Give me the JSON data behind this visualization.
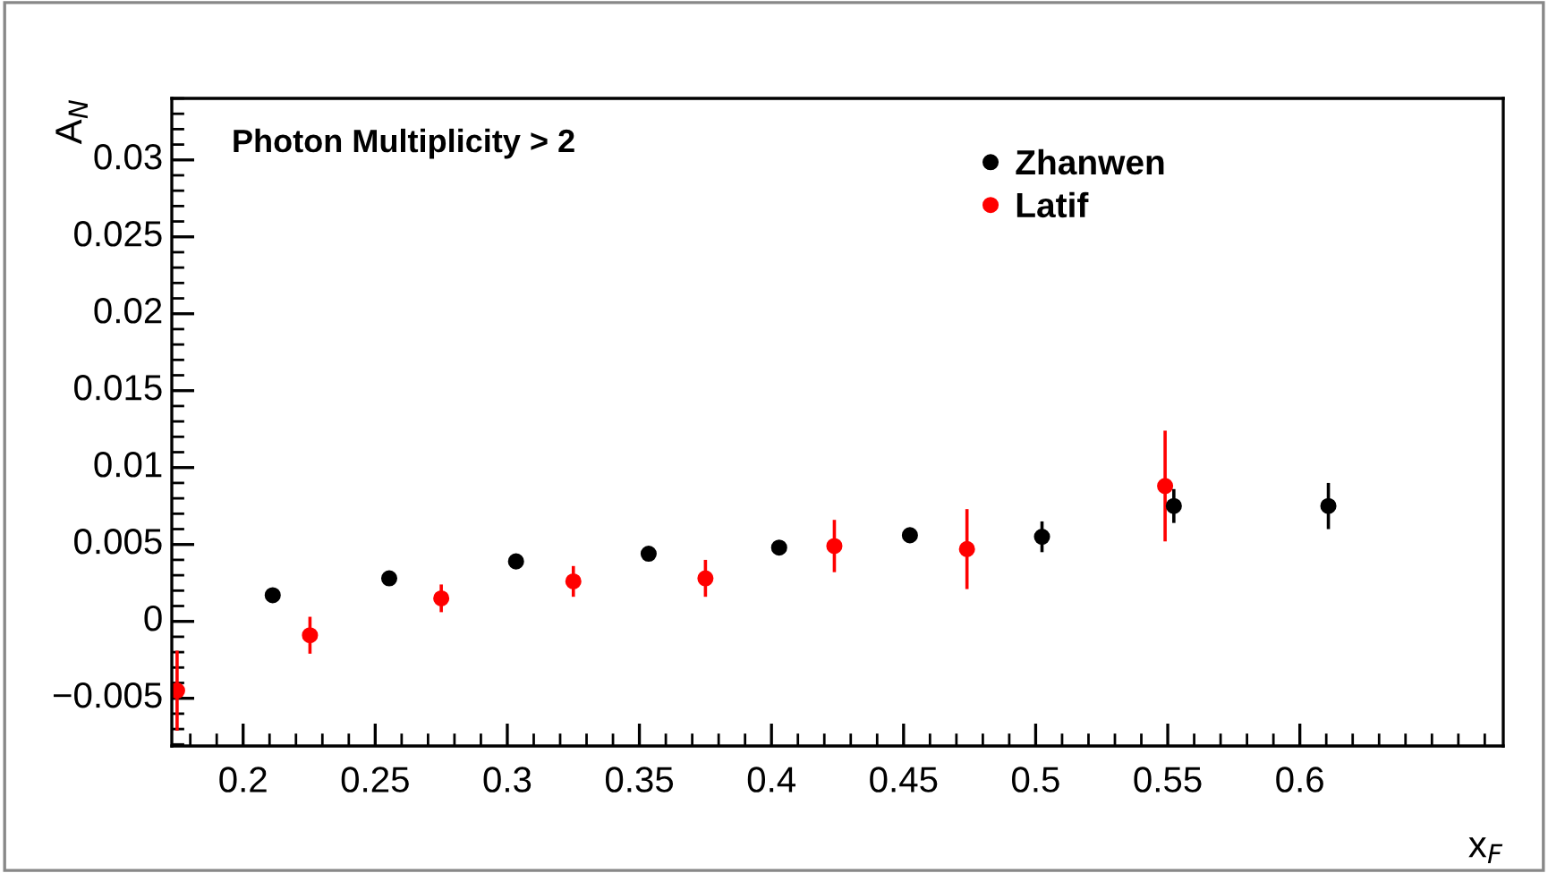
{
  "chart_data": {
    "type": "scatter",
    "xlabel": "x$_{F}$",
    "ylabel": "A$_{N}$",
    "annotations": [
      "Photon Multiplicity > 2"
    ],
    "series": [
      {
        "name": "Zhanwen",
        "color": "#000000",
        "x": [
          0.2112,
          0.2553,
          0.3033,
          0.3535,
          0.4029,
          0.4524,
          0.5024,
          0.5523,
          0.6108
        ],
        "values": [
          0.0017,
          0.0028,
          0.0039,
          0.0044,
          0.0048,
          0.0056,
          0.0055,
          0.0075,
          0.0075
        ],
        "errors": [
          null,
          null,
          null,
          null,
          null,
          0.0003,
          0.001,
          0.0011,
          0.0015
        ]
      },
      {
        "name": "Latif",
        "color": "#ff0000",
        "x": [
          0.175,
          0.2253,
          0.275,
          0.325,
          0.375,
          0.4238,
          0.474,
          0.549
        ],
        "values": [
          -0.0045,
          -0.0009,
          0.0015,
          0.0026,
          0.0028,
          0.0049,
          0.0047,
          0.0088
        ],
        "errors": [
          0.0026,
          0.0012,
          0.0009,
          0.001,
          0.0012,
          0.0017,
          0.0026,
          0.0036
        ]
      }
    ],
    "xlim": [
      0.173,
      0.677
    ],
    "ylim": [
      -0.0081,
      0.034
    ],
    "xticks": [
      0.2,
      0.25,
      0.3,
      0.35,
      0.4,
      0.45,
      0.5,
      0.55,
      0.6
    ],
    "yticks": [
      {
        "value": -0.005,
        "label": "−0.005"
      },
      0,
      0.005,
      0.01,
      0.015,
      0.02,
      0.025,
      0.03
    ],
    "marker": "circle",
    "grid": false,
    "legend": "top right"
  }
}
